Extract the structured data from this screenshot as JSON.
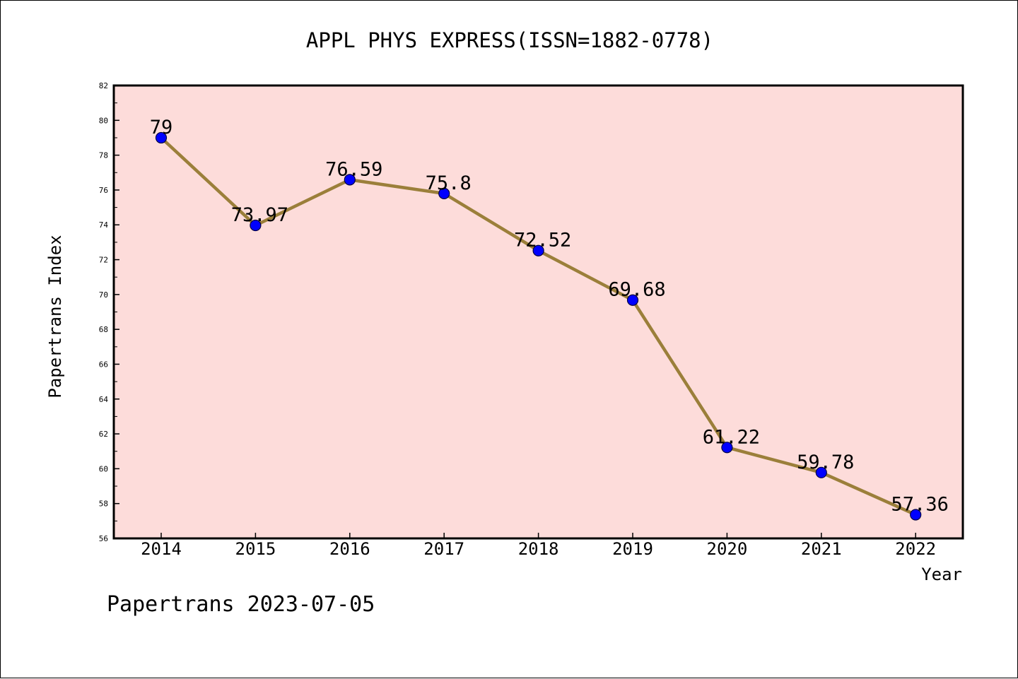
{
  "chart_data": {
    "type": "line",
    "title": "APPL PHYS EXPRESS(ISSN=1882-0778)",
    "xlabel": "Year",
    "ylabel": "Papertrans Index",
    "categories": [
      "2014",
      "2015",
      "2016",
      "2017",
      "2018",
      "2019",
      "2020",
      "2021",
      "2022"
    ],
    "series": [
      {
        "name": "Papertrans Index",
        "values": [
          79,
          73.97,
          76.59,
          75.8,
          72.52,
          69.68,
          61.22,
          59.78,
          57.36
        ],
        "labels": [
          "79",
          "73.97",
          "76.59",
          "75.8",
          "72.52",
          "69.68",
          "61.22",
          "59.78",
          "57.36"
        ]
      }
    ],
    "ylim": [
      56,
      82
    ],
    "yticks": [
      "56",
      "58",
      "60",
      "62",
      "64",
      "66",
      "68",
      "70",
      "72",
      "74",
      "76",
      "78",
      "80",
      "82"
    ],
    "grid": false,
    "plot_background": "#fddcda",
    "line_color": "#9b7f3a",
    "marker_color": "#0000ff"
  },
  "footer": {
    "credit": "Papertrans 2023-07-05"
  }
}
